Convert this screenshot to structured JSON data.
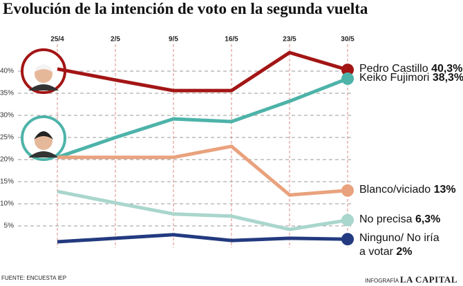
{
  "chart_data": {
    "type": "line",
    "title": "Evolución de la intención de voto en la segunda vuelta",
    "categories": [
      "25/4",
      "2/5",
      "9/5",
      "16/5",
      "23/5",
      "30/5"
    ],
    "ylim": [
      0,
      46
    ],
    "yticks": [
      {
        "value": 5,
        "label": "5%"
      },
      {
        "value": 10,
        "label": "10%"
      },
      {
        "value": 15,
        "label": "15%"
      },
      {
        "value": 20,
        "label": "20%"
      },
      {
        "value": 25,
        "label": "25%"
      },
      {
        "value": 30,
        "label": "30%"
      },
      {
        "value": 35,
        "label": "35%"
      },
      {
        "value": 40,
        "label": "40%"
      }
    ],
    "grid": true,
    "series": [
      {
        "name": "Pedro Castillo",
        "color": "#a31515",
        "values": [
          40.5,
          38,
          35.6,
          35.6,
          44.2,
          40.3
        ],
        "value_labels": [
          null,
          null,
          null,
          null,
          null,
          "40,3%"
        ]
      },
      {
        "name": "Keiko Fujimori",
        "color": "#4db3a9",
        "values": [
          20.5,
          25,
          29.2,
          28.6,
          33.2,
          38.3
        ],
        "value_labels": [
          null,
          null,
          null,
          null,
          null,
          "38,3%"
        ]
      },
      {
        "name": "Blanco/viciado",
        "color": "#e9a27d",
        "values": [
          20.5,
          20.5,
          20.5,
          23,
          12,
          13
        ],
        "value_labels": [
          null,
          null,
          null,
          null,
          null,
          "13%"
        ]
      },
      {
        "name": "No precisa",
        "color": "#a9d6cd",
        "values": [
          12.8,
          10.2,
          7.7,
          7.2,
          4.2,
          6.3
        ],
        "value_labels": [
          null,
          null,
          null,
          null,
          null,
          "6,3%"
        ]
      },
      {
        "name": "Ninguno/ No iría a votar",
        "color": "#233a80",
        "values": [
          1.4,
          2.2,
          3,
          1.7,
          2.2,
          2
        ],
        "value_labels": [
          null,
          null,
          null,
          null,
          null,
          "2%"
        ]
      }
    ]
  },
  "footer": {
    "source": "FUENTE: ENCUESTA IEP",
    "credit": "INFOGRAFÍA",
    "brand": "LA CAPITAL"
  }
}
